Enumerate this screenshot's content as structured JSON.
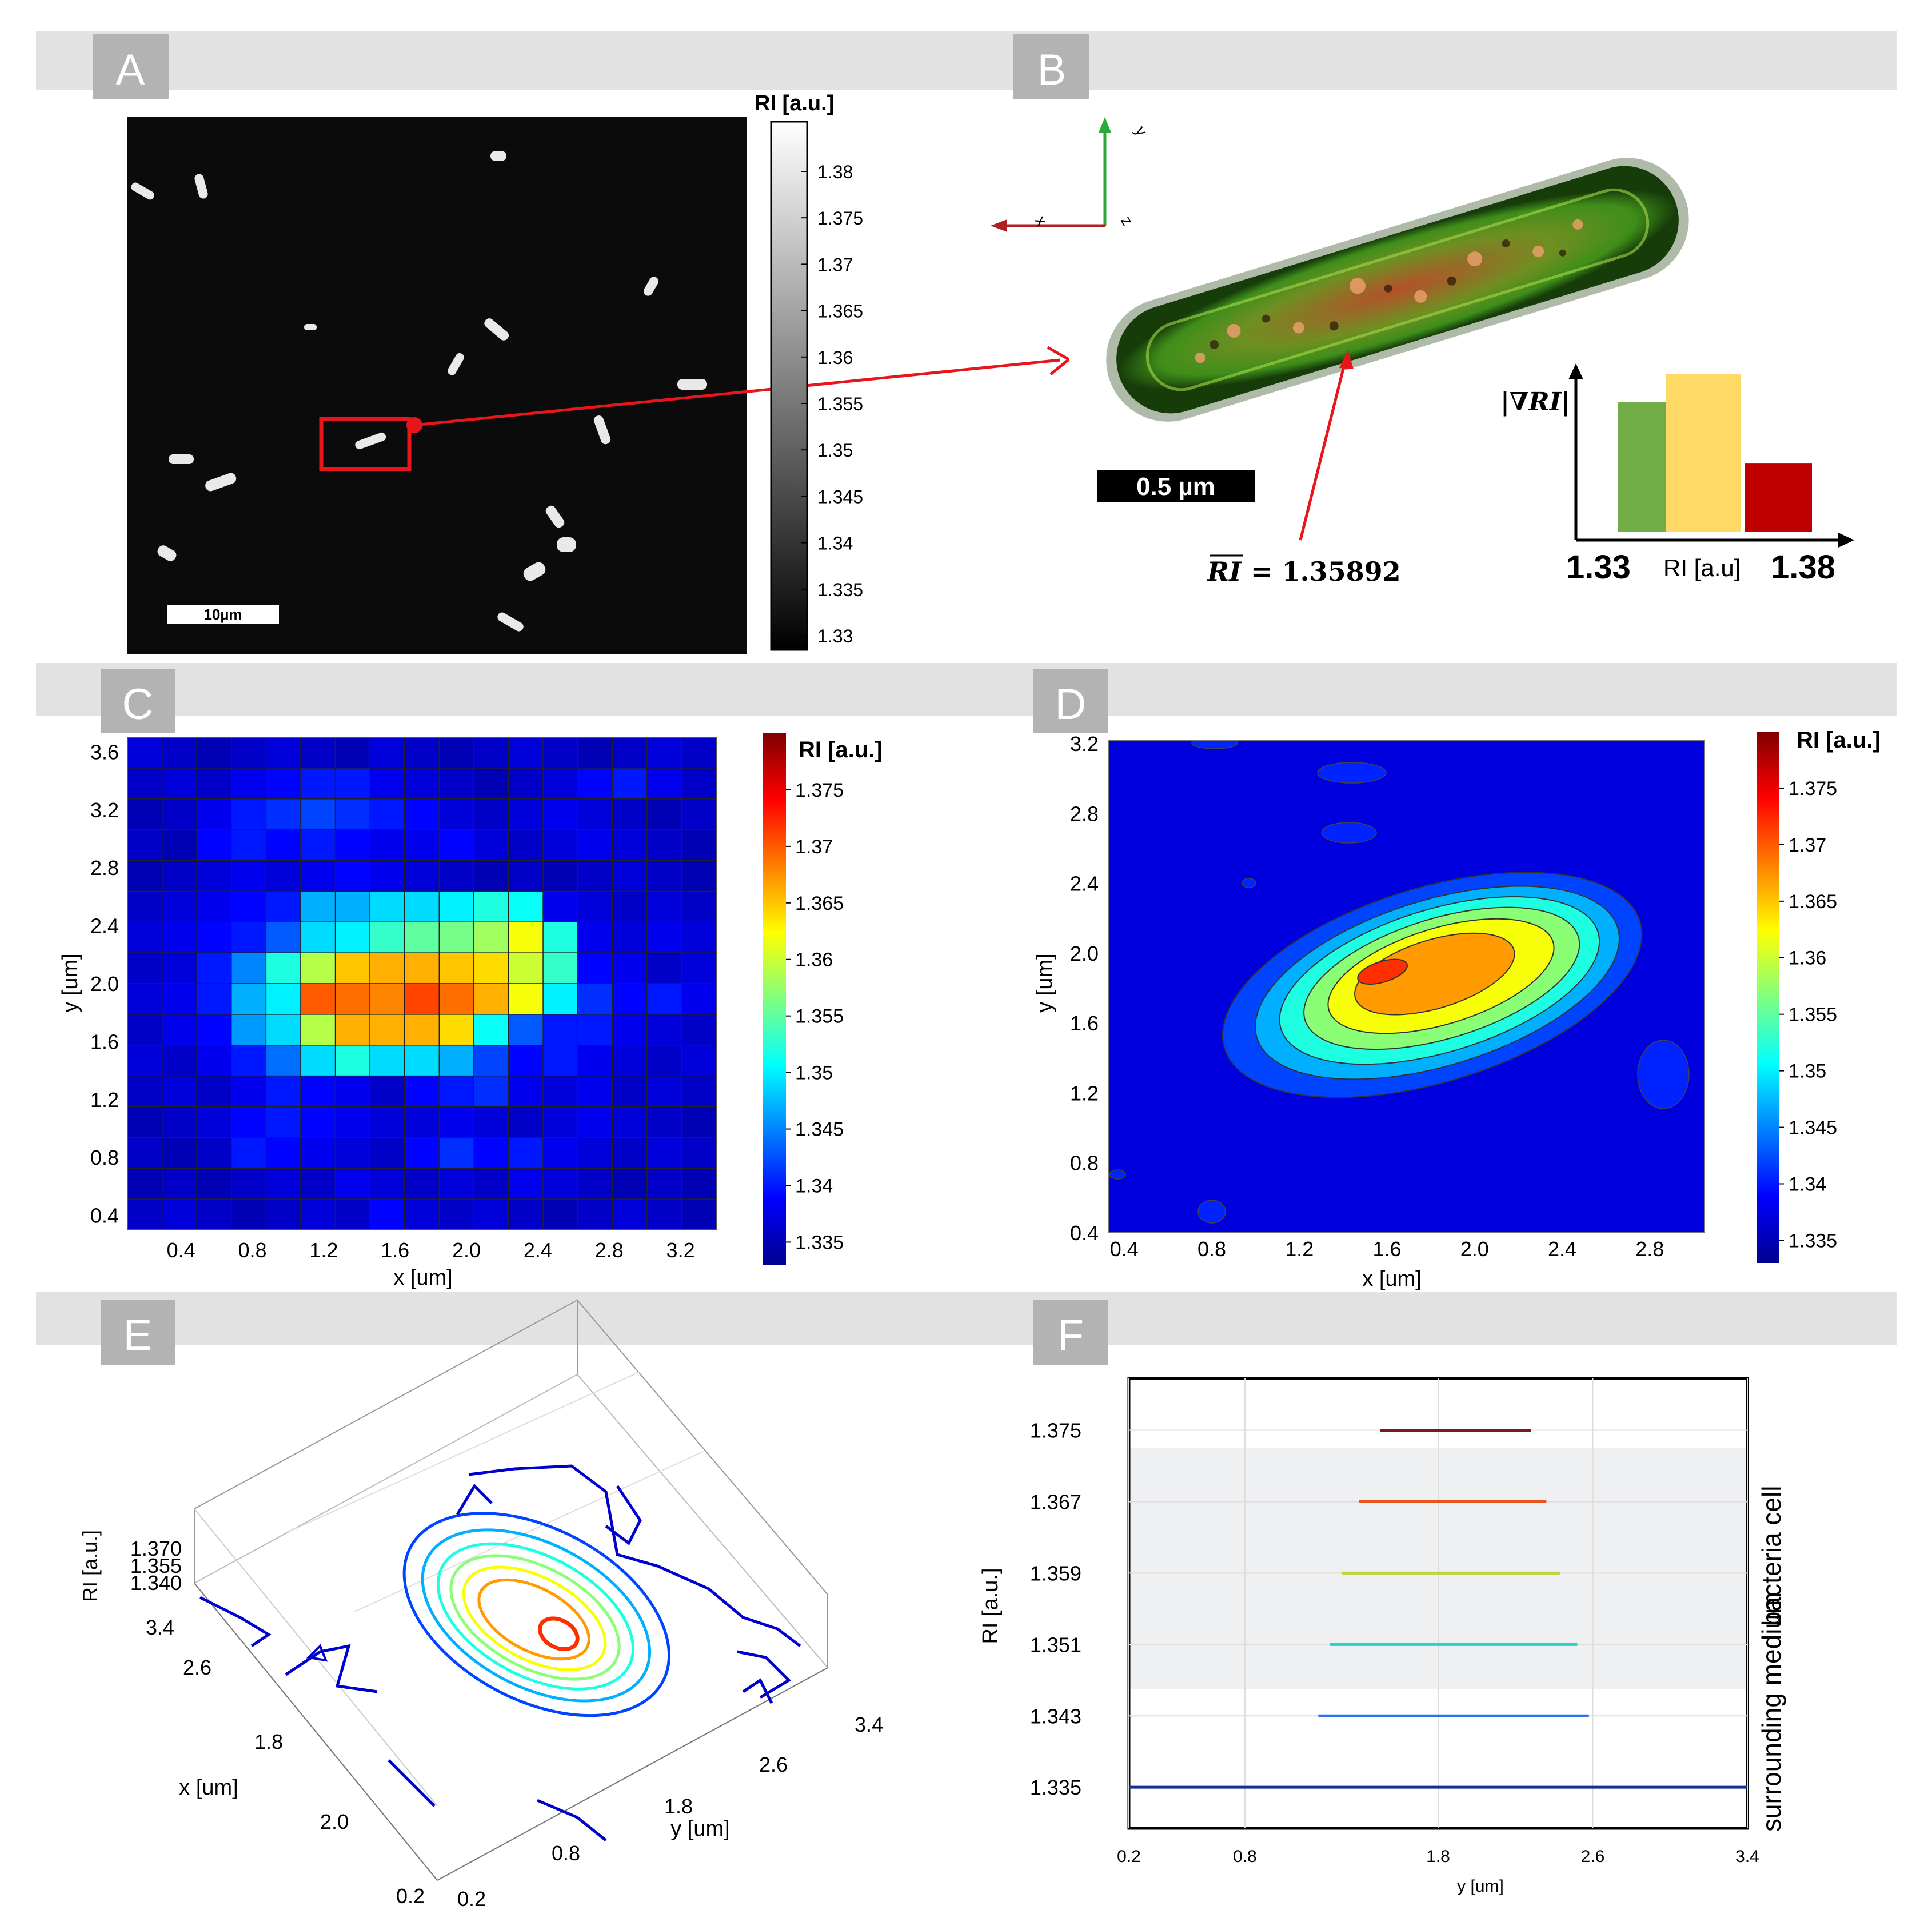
{
  "panels": {
    "a": {
      "label": "A",
      "scalebar": "10µm",
      "colorbar": {
        "title": "RI [a.u.]",
        "ticks": [
          "1.38",
          "1.375",
          "1.37",
          "1.365",
          "1.36",
          "1.355",
          "1.35",
          "1.345",
          "1.34",
          "1.335",
          "1.33"
        ]
      }
    },
    "b": {
      "label": "B",
      "scalebar": "0.5 µm",
      "mean_ri": "= 1.35892",
      "mean_ri_symbol": "RI",
      "gradient_label": "|∇RI|",
      "bar_axis_min": "1.33",
      "bar_axis_label": "RI [a.u]",
      "bar_axis_max": "1.38",
      "axis_labels": [
        "y",
        "x",
        "z"
      ],
      "bar_colors": [
        "#70ad47",
        "#ffd966",
        "#c00000"
      ],
      "bar_relative_heights": [
        0.78,
        0.95,
        0.41
      ]
    },
    "c": {
      "label": "C"
    },
    "d": {
      "label": "D"
    },
    "e": {
      "label": "E"
    },
    "f": {
      "label": "F",
      "region_cell": "bacteria cell",
      "region_medium": "surrounding medium"
    }
  },
  "chart_data": [
    {
      "id": "C",
      "type": "heatmap",
      "xlabel": "x [um]",
      "ylabel": "y [um]",
      "xticks": [
        "0.4",
        "0.8",
        "1.2",
        "1.6",
        "2.0",
        "2.4",
        "2.8",
        "3.2"
      ],
      "yticks": [
        "3.6",
        "3.2",
        "2.8",
        "2.4",
        "2.0",
        "1.6",
        "1.2",
        "0.8",
        "0.4"
      ],
      "xlim": [
        0.1,
        3.4
      ],
      "ylim": [
        0.3,
        3.7
      ],
      "colorbar": {
        "title": "RI [a.u.]",
        "range": [
          1.333,
          1.38
        ],
        "ticks": [
          "1.375",
          "1.37",
          "1.365",
          "1.36",
          "1.355",
          "1.35",
          "1.345",
          "1.34",
          "1.335"
        ]
      },
      "grid_values": [
        [
          1.337,
          1.336,
          1.335,
          1.336,
          1.337,
          1.336,
          1.335,
          1.337,
          1.336,
          1.335,
          1.336,
          1.337,
          1.336,
          1.335,
          1.336,
          1.337,
          1.336
        ],
        [
          1.336,
          1.337,
          1.336,
          1.338,
          1.339,
          1.34,
          1.34,
          1.338,
          1.337,
          1.336,
          1.335,
          1.336,
          1.337,
          1.339,
          1.34,
          1.338,
          1.336
        ],
        [
          1.335,
          1.336,
          1.338,
          1.34,
          1.341,
          1.342,
          1.341,
          1.34,
          1.339,
          1.337,
          1.336,
          1.337,
          1.338,
          1.337,
          1.336,
          1.335,
          1.336
        ],
        [
          1.336,
          1.335,
          1.339,
          1.34,
          1.339,
          1.34,
          1.339,
          1.338,
          1.338,
          1.339,
          1.337,
          1.336,
          1.337,
          1.338,
          1.337,
          1.336,
          1.335
        ],
        [
          1.335,
          1.336,
          1.337,
          1.338,
          1.337,
          1.338,
          1.339,
          1.338,
          1.337,
          1.336,
          1.335,
          1.336,
          1.335,
          1.336,
          1.337,
          1.336,
          1.335
        ],
        [
          1.336,
          1.337,
          1.338,
          1.339,
          1.34,
          1.347,
          1.347,
          1.349,
          1.349,
          1.35,
          1.352,
          1.351,
          1.338,
          1.337,
          1.336,
          1.337,
          1.336
        ],
        [
          1.337,
          1.338,
          1.339,
          1.34,
          1.343,
          1.349,
          1.35,
          1.353,
          1.355,
          1.356,
          1.358,
          1.362,
          1.352,
          1.338,
          1.337,
          1.338,
          1.337
        ],
        [
          1.336,
          1.337,
          1.34,
          1.345,
          1.352,
          1.359,
          1.365,
          1.366,
          1.366,
          1.365,
          1.364,
          1.36,
          1.353,
          1.339,
          1.338,
          1.336,
          1.337
        ],
        [
          1.337,
          1.338,
          1.34,
          1.347,
          1.35,
          1.37,
          1.369,
          1.368,
          1.371,
          1.369,
          1.366,
          1.362,
          1.35,
          1.341,
          1.339,
          1.34,
          1.338
        ],
        [
          1.336,
          1.338,
          1.339,
          1.346,
          1.349,
          1.359,
          1.366,
          1.366,
          1.366,
          1.364,
          1.351,
          1.343,
          1.34,
          1.34,
          1.338,
          1.337,
          1.336
        ],
        [
          1.337,
          1.336,
          1.338,
          1.34,
          1.344,
          1.349,
          1.352,
          1.349,
          1.349,
          1.347,
          1.342,
          1.339,
          1.34,
          1.338,
          1.337,
          1.336,
          1.337
        ],
        [
          1.336,
          1.337,
          1.336,
          1.338,
          1.34,
          1.339,
          1.338,
          1.336,
          1.339,
          1.34,
          1.341,
          1.338,
          1.337,
          1.338,
          1.336,
          1.337,
          1.336
        ],
        [
          1.335,
          1.336,
          1.337,
          1.339,
          1.34,
          1.339,
          1.338,
          1.337,
          1.337,
          1.338,
          1.337,
          1.336,
          1.337,
          1.338,
          1.337,
          1.336,
          1.335
        ],
        [
          1.336,
          1.335,
          1.336,
          1.34,
          1.339,
          1.338,
          1.337,
          1.336,
          1.339,
          1.341,
          1.339,
          1.34,
          1.338,
          1.337,
          1.336,
          1.337,
          1.336
        ],
        [
          1.335,
          1.336,
          1.335,
          1.336,
          1.337,
          1.336,
          1.338,
          1.337,
          1.336,
          1.337,
          1.336,
          1.338,
          1.337,
          1.336,
          1.335,
          1.336,
          1.335
        ],
        [
          1.336,
          1.337,
          1.336,
          1.335,
          1.336,
          1.337,
          1.336,
          1.339,
          1.337,
          1.336,
          1.337,
          1.336,
          1.335,
          1.336,
          1.337,
          1.336,
          1.335
        ]
      ]
    },
    {
      "id": "D",
      "type": "contourf",
      "xlabel": "x [um]",
      "ylabel": "y [um]",
      "xticks": [
        "0.4",
        "0.8",
        "1.2",
        "1.6",
        "2.0",
        "2.4",
        "2.8"
      ],
      "yticks": [
        "3.2",
        "2.8",
        "2.4",
        "2.0",
        "1.6",
        "1.2",
        "0.8",
        "0.4"
      ],
      "xlim": [
        0.33,
        3.05
      ],
      "ylim": [
        0.4,
        3.22
      ],
      "colorbar": {
        "title": "RI [a.u.]",
        "range": [
          1.333,
          1.38
        ],
        "ticks": [
          "1.375",
          "1.37",
          "1.365",
          "1.36",
          "1.355",
          "1.35",
          "1.345",
          "1.34",
          "1.335"
        ]
      },
      "blob": {
        "center_x": 1.65,
        "center_y": 1.76,
        "levels": [
          1.34,
          1.345,
          1.35,
          1.355,
          1.36,
          1.365,
          1.37
        ]
      }
    },
    {
      "id": "E",
      "type": "contour3d",
      "zlabel": "RI [a.u.]",
      "xlabel": "x [um]",
      "ylabel": "y [um]",
      "zticks": [
        "1.370",
        "1.355",
        "1.340"
      ],
      "xticks": [
        "3.4",
        "2.6",
        "1.8",
        "2.0",
        "0.2"
      ],
      "yticks": [
        "0.2",
        "0.8",
        "1.8",
        "2.6",
        "3.4"
      ],
      "levels": [
        1.34,
        1.345,
        1.35,
        1.355,
        1.36,
        1.365,
        1.37
      ]
    },
    {
      "id": "F",
      "type": "line",
      "xlabel": "y [um]",
      "ylabel": "RI [a.u.]",
      "xticks": [
        "0.2",
        "0.8",
        "1.8",
        "2.6",
        "3.4"
      ],
      "yticks": [
        "1.375",
        "1.367",
        "1.359",
        "1.351",
        "1.343",
        "1.335"
      ],
      "series": [
        {
          "ri": 1.375,
          "x_start": 1.5,
          "x_end": 2.28,
          "color": "#7b1a12"
        },
        {
          "ri": 1.367,
          "x_start": 1.39,
          "x_end": 2.36,
          "color": "#e8541a"
        },
        {
          "ri": 1.359,
          "x_start": 1.3,
          "x_end": 2.43,
          "color": "#bcd63a"
        },
        {
          "ri": 1.351,
          "x_start": 1.24,
          "x_end": 2.52,
          "color": "#27d3c8"
        },
        {
          "ri": 1.343,
          "x_start": 1.18,
          "x_end": 2.58,
          "color": "#2f6ff0"
        },
        {
          "ri": 1.335,
          "x_start": 0.2,
          "x_end": 3.4,
          "color": "#152e8f"
        }
      ]
    }
  ]
}
